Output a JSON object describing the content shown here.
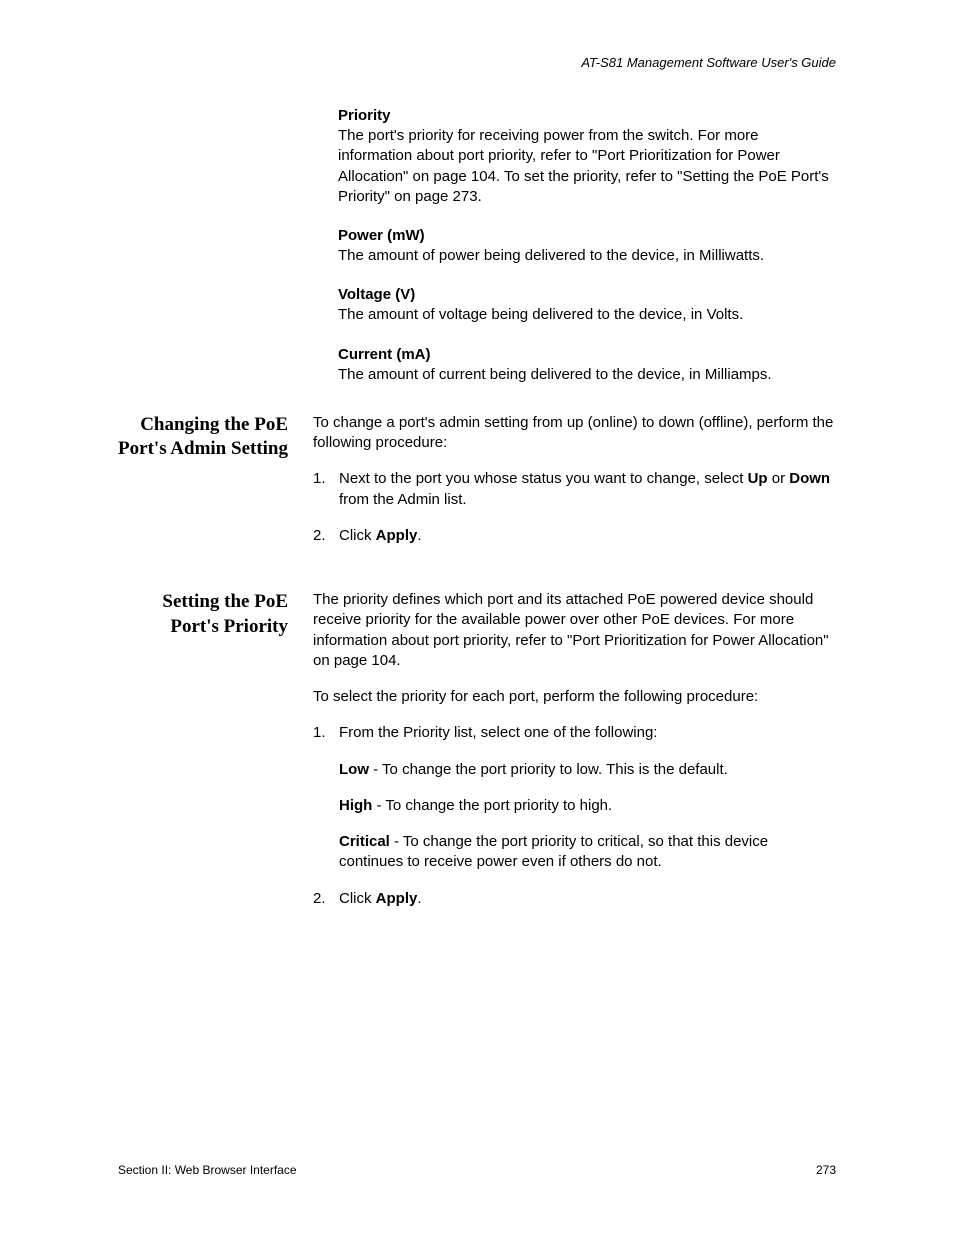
{
  "header": {
    "guide_title": "AT-S81 Management Software User's Guide"
  },
  "definitions": {
    "priority": {
      "heading": "Priority",
      "body": "The port's priority for receiving power from the switch. For more information about port priority, refer to \"Port Prioritization for Power Allocation\" on page 104. To set the priority, refer to \"Setting the PoE Port's Priority\" on page 273."
    },
    "power": {
      "heading": "Power (mW)",
      "body": "The amount of power being delivered to the device, in Milliwatts."
    },
    "voltage": {
      "heading": "Voltage (V)",
      "body": "The amount of voltage being delivered to the device, in Volts."
    },
    "current": {
      "heading": "Current (mA)",
      "body": "The amount of current being delivered to the device, in Milliamps."
    }
  },
  "sections": {
    "admin": {
      "heading": "Changing the PoE Port's Admin Setting",
      "intro": "To change a port's admin setting from up (online) to down (offline), perform the following procedure:",
      "step1_num": "1.",
      "step1_a": "Next to the port you whose status you want to change, select ",
      "step1_b": "Up",
      "step1_c": " or ",
      "step1_d": "Down",
      "step1_e": " from the Admin list.",
      "step2_num": "2.",
      "step2_a": "Click ",
      "step2_b": "Apply",
      "step2_c": "."
    },
    "priority": {
      "heading": "Setting the PoE Port's Priority",
      "intro": "The priority defines which port and its attached PoE powered device should receive priority for the available power over other PoE devices. For more information about port priority, refer to \"Port Prioritization for Power Allocation\" on page 104.",
      "intro2": "To select the priority for each port, perform the following procedure:",
      "step1_num": "1.",
      "step1": "From the Priority list, select one of the following:",
      "low_a": "Low",
      "low_b": " - To change the port priority to low. This is the default.",
      "high_a": "High",
      "high_b": " - To change the port priority to high.",
      "critical_a": "Critical",
      "critical_b": " - To change the port priority to critical, so that this device continues to receive power even if others do not.",
      "step2_num": "2.",
      "step2_a": "Click ",
      "step2_b": "Apply",
      "step2_c": "."
    }
  },
  "footer": {
    "section_label": "Section II: Web Browser Interface",
    "page_number": "273"
  }
}
